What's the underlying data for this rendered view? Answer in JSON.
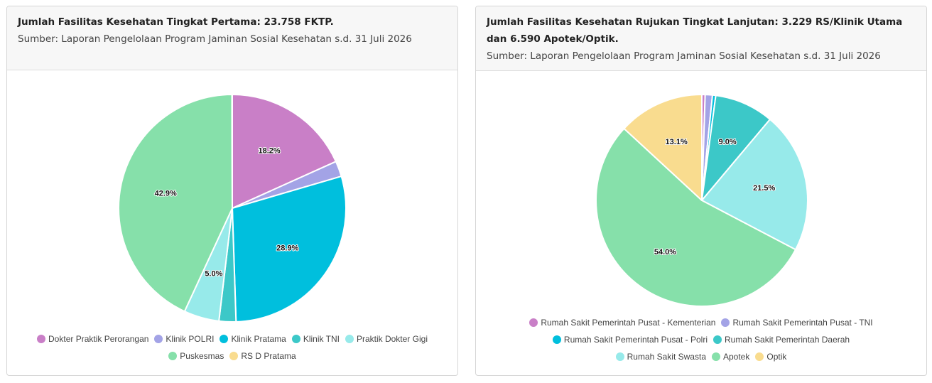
{
  "cards": [
    {
      "title": "Jumlah Fasilitas Kesehatan Tingkat Pertama: 23.758 FKTP.",
      "source": "Sumber: Laporan Pengelolaan Program Jaminan Sosial Kesehatan s.d. 31 Juli 2026"
    },
    {
      "title": "Jumlah Fasilitas Kesehatan Rujukan Tingkat Lanjutan: 3.229 RS/Klinik Utama dan 6.590 Apotek/Optik.",
      "source": "Sumber: Laporan Pengelolaan Program Jaminan Sosial Kesehatan s.d. 31 Juli 2026"
    }
  ],
  "chart_data": [
    {
      "type": "pie",
      "title": "Jumlah Fasilitas Kesehatan Tingkat Pertama: 23.758 FKTP.",
      "legend_position": "bottom",
      "slices": [
        {
          "name": "Dokter Praktik Perorangan",
          "value": 18.2,
          "label": "18.2%",
          "color": "#c97fc7"
        },
        {
          "name": "Klinik POLRI",
          "value": 2.2,
          "label": "",
          "color": "#a3a3e6"
        },
        {
          "name": "Klinik Pratama",
          "value": 28.9,
          "label": "28.9%",
          "color": "#00bfdd"
        },
        {
          "name": "Klinik TNI",
          "value": 2.4,
          "label": "",
          "color": "#3cc8c8"
        },
        {
          "name": "Praktik Dokter Gigi",
          "value": 5.0,
          "label": "5.0%",
          "color": "#97eaea"
        },
        {
          "name": "Puskesmas",
          "value": 42.9,
          "label": "42.9%",
          "color": "#86e0aa"
        },
        {
          "name": "RS D Pratama",
          "value": 0.05,
          "label": "",
          "color": "#f9dc8f"
        }
      ]
    },
    {
      "type": "pie",
      "title": "Jumlah Fasilitas Kesehatan Rujukan Tingkat Lanjutan: 3.229 RS/Klinik Utama dan 6.590 Apotek/Optik.",
      "legend_position": "bottom",
      "slices": [
        {
          "name": "Rumah Sakit Pemerintah Pusat - Kementerian",
          "value": 0.5,
          "label": "",
          "color": "#c97fc7"
        },
        {
          "name": "Rumah Sakit Pemerintah Pusat - TNI",
          "value": 1.1,
          "label": "",
          "color": "#a3a3e6"
        },
        {
          "name": "Rumah Sakit Pemerintah Pusat - Polri",
          "value": 0.5,
          "label": "",
          "color": "#00bfdd"
        },
        {
          "name": "Rumah Sakit Pemerintah Daerah",
          "value": 9.0,
          "label": "9.0%",
          "color": "#3cc8c8"
        },
        {
          "name": "Rumah Sakit Swasta",
          "value": 21.5,
          "label": "21.5%",
          "color": "#97eaea"
        },
        {
          "name": "Apotek",
          "value": 54.0,
          "label": "54.0%",
          "color": "#86e0aa"
        },
        {
          "name": "Optik",
          "value": 13.1,
          "label": "13.1%",
          "color": "#f9dc8f"
        }
      ]
    }
  ]
}
